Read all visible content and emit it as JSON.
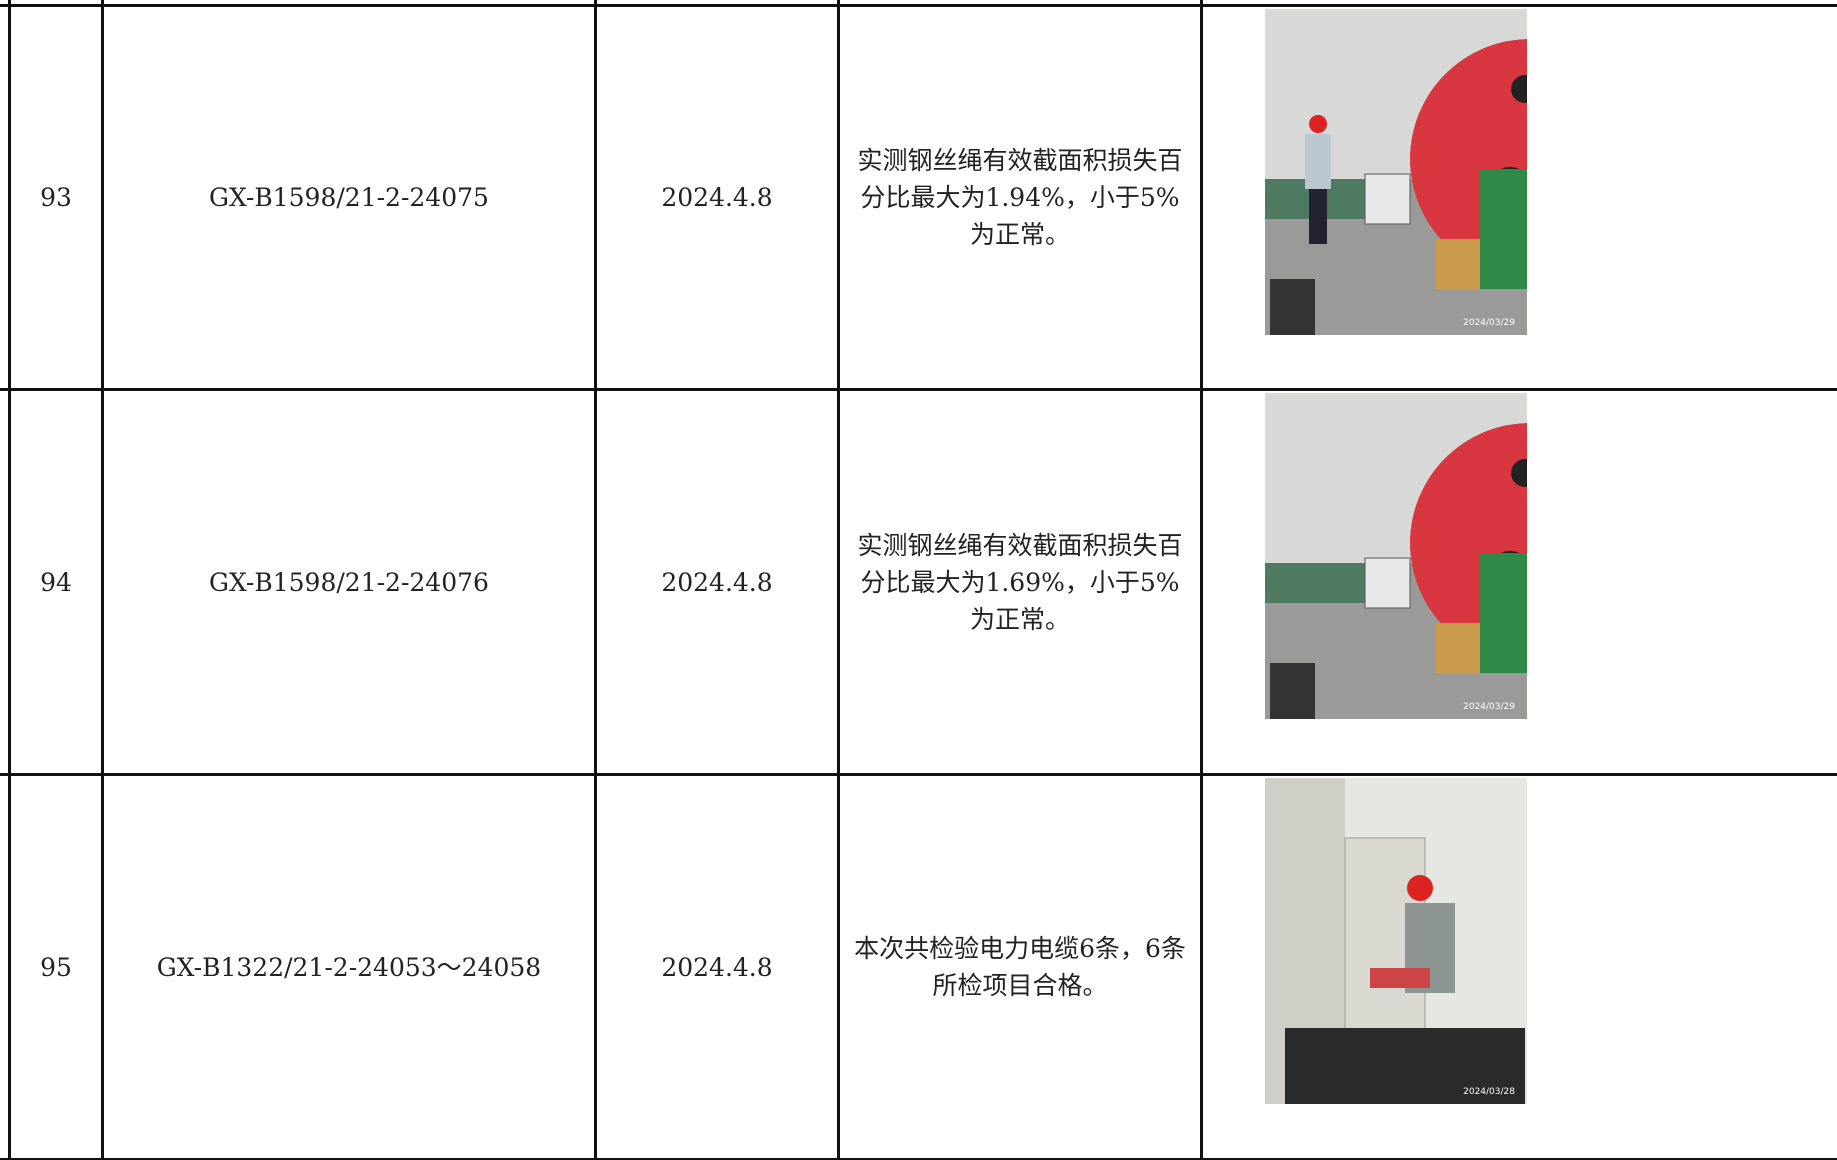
{
  "table": {
    "rows": [
      {
        "no": "93",
        "code": "GX-B1598/21-2-24075",
        "date": "2024.4.8",
        "result": "实测钢丝绳有效截面积损失百分比最大为1.94%，小于5%为正常。",
        "photo_date": "2024/03/29"
      },
      {
        "no": "94",
        "code": "GX-B1598/21-2-24076",
        "date": "2024.4.8",
        "result": "实测钢丝绳有效截面积损失百分比最大为1.69%，小于5%为正常。",
        "photo_date": "2024/03/29"
      },
      {
        "no": "95",
        "code": "GX-B1322/21-2-24053～24058",
        "date": "2024.4.8",
        "result": "本次共检验电力电缆6条，6条所检项目合格。",
        "photo_date": "2024/03/28"
      }
    ]
  }
}
